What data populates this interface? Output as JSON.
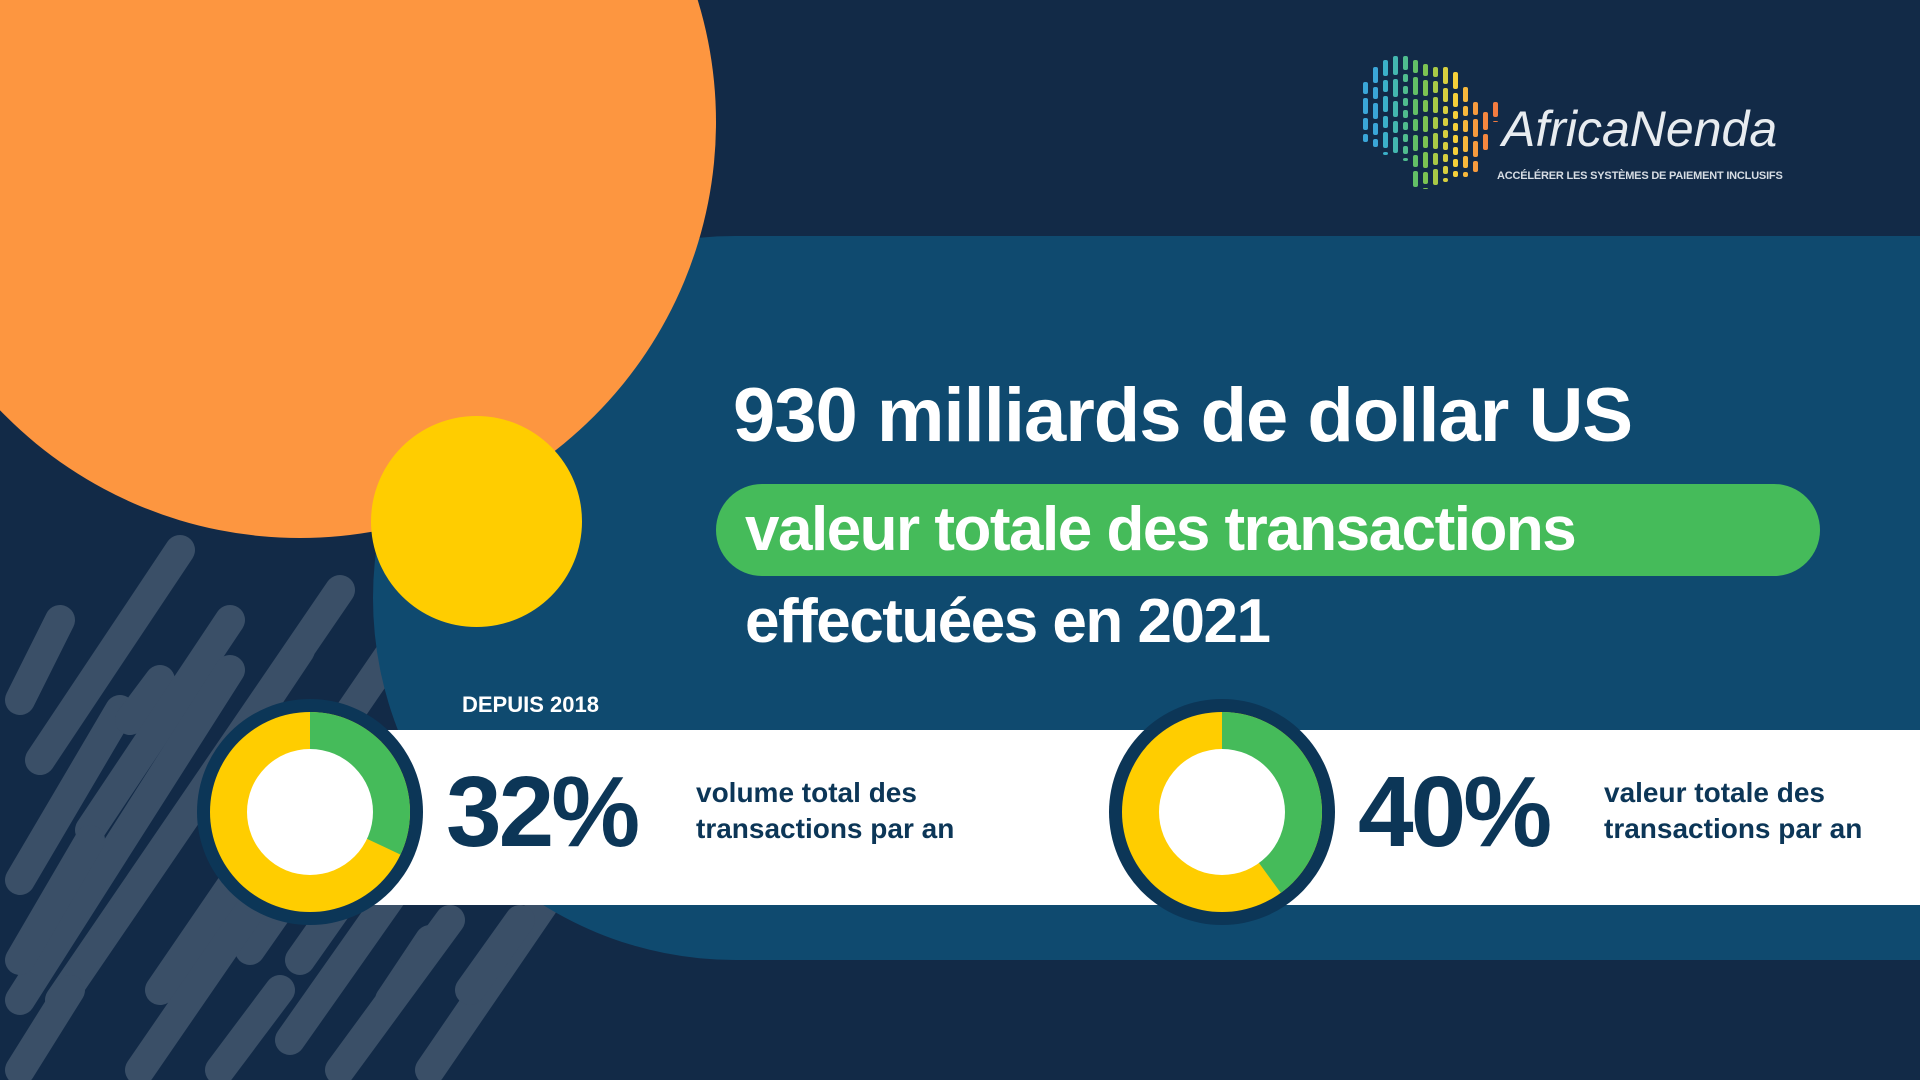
{
  "brand": {
    "name": "AfricaNenda",
    "tagline": "ACCÉLÉRER LES SYSTÈMES DE PAIEMENT INCLUSIFS",
    "logo_icon": "africa-map-icon"
  },
  "headline": {
    "line1": "930 milliards de dollar US",
    "line2": "valeur totale des transactions",
    "line3": "effectuées en 2021"
  },
  "stats": {
    "since_label": "DEPUIS 2018",
    "items": [
      {
        "percent": "32%",
        "value": 32,
        "line1": "volume total des",
        "line2": "transactions par an"
      },
      {
        "percent": "40%",
        "value": 40,
        "line1": "valeur totale des",
        "line2": "transactions par an"
      }
    ]
  },
  "colors": {
    "background": "#122a47",
    "panel": "#0f4a6f",
    "orange": "#fd9640",
    "yellow": "#ffcd00",
    "green": "#45bb5a",
    "navy_text": "#0c3657",
    "stripe": "#3a4f67"
  }
}
